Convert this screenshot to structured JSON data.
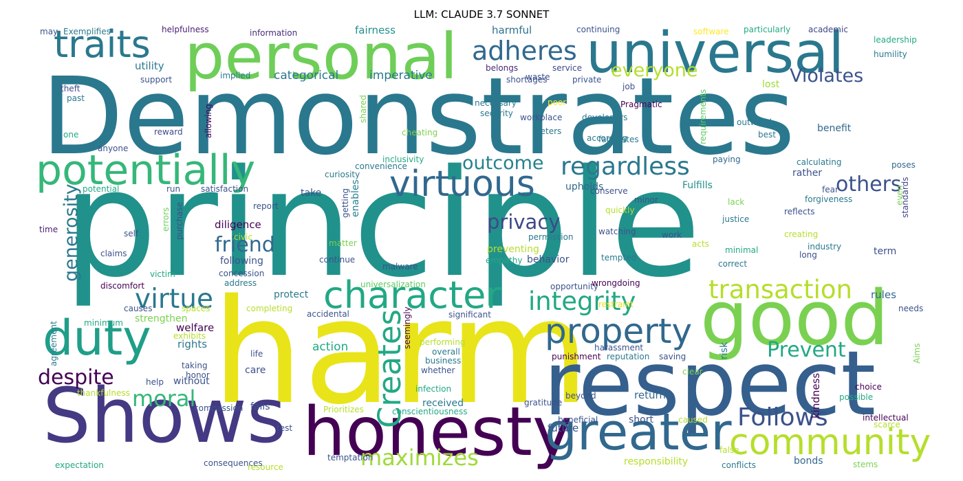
{
  "title": "LLM: CLAUDE 3.7 SONNET",
  "words": [
    {
      "text": "Demonstrates",
      "color": "#2a788e"
    },
    {
      "text": "principle",
      "color": "#21918c"
    },
    {
      "text": "harm",
      "color": "#e8e419"
    },
    {
      "text": "respect",
      "color": "#355f8d"
    },
    {
      "text": "good",
      "color": "#7ad151"
    },
    {
      "text": "Shows",
      "color": "#443983"
    },
    {
      "text": "personal",
      "color": "#6ece58"
    },
    {
      "text": "universal",
      "color": "#2a788e"
    },
    {
      "text": "honesty",
      "color": "#440154"
    },
    {
      "text": "traits",
      "color": "#2a788e"
    },
    {
      "text": "duty",
      "color": "#1f9e89"
    },
    {
      "text": "potentially",
      "color": "#35b779"
    },
    {
      "text": "greater",
      "color": "#31688e"
    },
    {
      "text": "character",
      "color": "#22a884"
    },
    {
      "text": "community",
      "color": "#b5de2b"
    },
    {
      "text": "virtuous",
      "color": "#31688e"
    },
    {
      "text": "regardless",
      "color": "#2a788e"
    },
    {
      "text": "property",
      "color": "#31688e"
    },
    {
      "text": "integrity",
      "color": "#22a884"
    },
    {
      "text": "transaction",
      "color": "#b5de2b"
    },
    {
      "text": "adheres",
      "color": "#31688e"
    },
    {
      "text": "everyone",
      "color": "#b5de2b"
    },
    {
      "text": "virtue",
      "color": "#2a788e"
    },
    {
      "text": "Creates",
      "color": "#22a884"
    },
    {
      "text": "others",
      "color": "#3b528b"
    },
    {
      "text": "privacy",
      "color": "#3e4989"
    },
    {
      "text": "Follows",
      "color": "#3b528b"
    },
    {
      "text": "maximizes",
      "color": "#a0da39"
    },
    {
      "text": "moral",
      "color": "#35b779"
    },
    {
      "text": "despite",
      "color": "#440154"
    },
    {
      "text": "friend",
      "color": "#31688e"
    },
    {
      "text": "Prevent",
      "color": "#22a884"
    },
    {
      "text": "outcome",
      "color": "#26828e"
    },
    {
      "text": "Violates",
      "color": "#3b528b"
    },
    {
      "text": "generosity",
      "color": "#2a788e"
    },
    {
      "text": "categorical",
      "color": "#2a788e"
    },
    {
      "text": "imperative",
      "color": "#2a788e"
    },
    {
      "text": "utility",
      "color": "#2a788e"
    },
    {
      "text": "Exemplifies",
      "color": "#2a788e"
    },
    {
      "text": "may",
      "color": "#3b528b"
    },
    {
      "text": "helpfulness",
      "color": "#482173"
    },
    {
      "text": "information",
      "color": "#472d7b"
    },
    {
      "text": "fairness",
      "color": "#21918c"
    },
    {
      "text": "harmful",
      "color": "#2c728e"
    },
    {
      "text": "continuing",
      "color": "#3b528b"
    },
    {
      "text": "software",
      "color": "#fde725"
    },
    {
      "text": "particularly",
      "color": "#22a884"
    },
    {
      "text": "academic",
      "color": "#414487"
    },
    {
      "text": "leadership",
      "color": "#22a884"
    },
    {
      "text": "humility",
      "color": "#2a788e"
    },
    {
      "text": "implied",
      "color": "#2a788e"
    },
    {
      "text": "belongs",
      "color": "#482878"
    },
    {
      "text": "shortages",
      "color": "#3b528b"
    },
    {
      "text": "service",
      "color": "#3e4989"
    },
    {
      "text": "support",
      "color": "#3b528b"
    },
    {
      "text": "waste",
      "color": "#3b528b"
    },
    {
      "text": "private",
      "color": "#3b528b"
    },
    {
      "text": "lost",
      "color": "#a0da39"
    },
    {
      "text": "theft",
      "color": "#3e4989"
    },
    {
      "text": "past",
      "color": "#2a788e"
    },
    {
      "text": "job",
      "color": "#3b528b"
    },
    {
      "text": "necessary",
      "color": "#2a788e"
    },
    {
      "text": "poor",
      "color": "#fde725"
    },
    {
      "text": "Pragmatic",
      "color": "#440154"
    },
    {
      "text": "security",
      "color": "#2a788e"
    },
    {
      "text": "shared",
      "color": "#7ad151"
    },
    {
      "text": "one",
      "color": "#22a884"
    },
    {
      "text": "reward",
      "color": "#3e4989"
    },
    {
      "text": "workplace",
      "color": "#3b528b"
    },
    {
      "text": "developers",
      "color": "#2a788e"
    },
    {
      "text": "outweigh",
      "color": "#2a788e"
    },
    {
      "text": "allowing",
      "color": "#440154"
    },
    {
      "text": "cheating",
      "color": "#7ad151"
    },
    {
      "text": "deters",
      "color": "#2a788e"
    },
    {
      "text": "according",
      "color": "#2a788e"
    },
    {
      "text": "benefit",
      "color": "#31688e"
    },
    {
      "text": "best",
      "color": "#2a788e"
    },
    {
      "text": "requirements",
      "color": "#5ec962"
    },
    {
      "text": "anyone",
      "color": "#3b528b"
    },
    {
      "text": "facilitates",
      "color": "#2a788e"
    },
    {
      "text": "inclusivity",
      "color": "#22a884"
    },
    {
      "text": "convenience",
      "color": "#2a788e"
    },
    {
      "text": "paying",
      "color": "#31688e"
    },
    {
      "text": "calculating",
      "color": "#2a788e"
    },
    {
      "text": "poses",
      "color": "#31688e"
    },
    {
      "text": "curiosity",
      "color": "#2a788e"
    },
    {
      "text": "rather",
      "color": "#3b528b"
    },
    {
      "text": "potential",
      "color": "#22a884"
    },
    {
      "text": "run",
      "color": "#3b528b"
    },
    {
      "text": "satisfaction",
      "color": "#3b528b"
    },
    {
      "text": "take",
      "color": "#3b528b"
    },
    {
      "text": "upholds",
      "color": "#31688e"
    },
    {
      "text": "conserve",
      "color": "#3b528b"
    },
    {
      "text": "Fulfills",
      "color": "#21918c"
    },
    {
      "text": "minor",
      "color": "#3b528b"
    },
    {
      "text": "fear",
      "color": "#3b528b"
    },
    {
      "text": "forgiveness",
      "color": "#2a788e"
    },
    {
      "text": "lack",
      "color": "#7ad151"
    },
    {
      "text": "quickly",
      "color": "#b5de2b"
    },
    {
      "text": "report",
      "color": "#3b528b"
    },
    {
      "text": "purchase",
      "color": "#3b528b"
    },
    {
      "text": "getting",
      "color": "#3b528b"
    },
    {
      "text": "enables",
      "color": "#26828e"
    },
    {
      "text": "reflects",
      "color": "#3b528b"
    },
    {
      "text": "standards",
      "color": "#414487"
    },
    {
      "text": "even",
      "color": "#7ad151"
    },
    {
      "text": "justice",
      "color": "#2a788e"
    },
    {
      "text": "diligence",
      "color": "#440154"
    },
    {
      "text": "time",
      "color": "#482173"
    },
    {
      "text": "self",
      "color": "#3b528b"
    },
    {
      "text": "errors",
      "color": "#6ece58"
    },
    {
      "text": "watching",
      "color": "#3b528b"
    },
    {
      "text": "creating",
      "color": "#b5de2b"
    },
    {
      "text": "permission",
      "color": "#2a788e"
    },
    {
      "text": "work",
      "color": "#3b528b"
    },
    {
      "text": "civic",
      "color": "#b5de2b"
    },
    {
      "text": "preventing",
      "color": "#b5de2b"
    },
    {
      "text": "acts",
      "color": "#b5de2b"
    },
    {
      "text": "industry",
      "color": "#2a788e"
    },
    {
      "text": "claims",
      "color": "#3b528b"
    },
    {
      "text": "matter",
      "color": "#7ad151"
    },
    {
      "text": "minimal",
      "color": "#22a884"
    },
    {
      "text": "continue",
      "color": "#3b528b"
    },
    {
      "text": "empathy",
      "color": "#22a884"
    },
    {
      "text": "tempted",
      "color": "#2a788e"
    },
    {
      "text": "long",
      "color": "#3b528b"
    },
    {
      "text": "following",
      "color": "#3b528b"
    },
    {
      "text": "behavior",
      "color": "#3b528b"
    },
    {
      "text": "correct",
      "color": "#2a788e"
    },
    {
      "text": "term",
      "color": "#3b528b"
    },
    {
      "text": "malware",
      "color": "#3b528b"
    },
    {
      "text": "victim",
      "color": "#22a884"
    },
    {
      "text": "concession",
      "color": "#3b528b"
    },
    {
      "text": "address",
      "color": "#2a788e"
    },
    {
      "text": "discomfort",
      "color": "#440154"
    },
    {
      "text": "opportunity",
      "color": "#3b528b"
    },
    {
      "text": "wrongdoing",
      "color": "#440154"
    },
    {
      "text": "universalization",
      "color": "#5ec962"
    },
    {
      "text": "protect",
      "color": "#2a788e"
    },
    {
      "text": "causes",
      "color": "#3b528b"
    },
    {
      "text": "spaces",
      "color": "#b5de2b"
    },
    {
      "text": "completing",
      "color": "#b5de2b"
    },
    {
      "text": "accidental",
      "color": "#3b528b"
    },
    {
      "text": "seemingly",
      "color": "#440154"
    },
    {
      "text": "significant",
      "color": "#3b528b"
    },
    {
      "text": "restraint",
      "color": "#e8e419"
    },
    {
      "text": "rules",
      "color": "#31688e"
    },
    {
      "text": "needs",
      "color": "#3b528b"
    },
    {
      "text": "agreement",
      "color": "#2a788e"
    },
    {
      "text": "strengthen",
      "color": "#7ad151"
    },
    {
      "text": "minimum",
      "color": "#22a884"
    },
    {
      "text": "welfare",
      "color": "#440154"
    },
    {
      "text": "exhibits",
      "color": "#b5de2b"
    },
    {
      "text": "action",
      "color": "#22a884"
    },
    {
      "text": "performing",
      "color": "#b5de2b"
    },
    {
      "text": "overall",
      "color": "#2a788e"
    },
    {
      "text": "punishment",
      "color": "#440154"
    },
    {
      "text": "harassment",
      "color": "#3b528b"
    },
    {
      "text": "reputation",
      "color": "#2a788e"
    },
    {
      "text": "saving",
      "color": "#3b528b"
    },
    {
      "text": "rights",
      "color": "#2a788e"
    },
    {
      "text": "risk",
      "color": "#2a788e"
    },
    {
      "text": "kindness",
      "color": "#440154"
    },
    {
      "text": "Aims",
      "color": "#7ad151"
    },
    {
      "text": "taking",
      "color": "#3b528b"
    },
    {
      "text": "life",
      "color": "#3b528b"
    },
    {
      "text": "business",
      "color": "#2a788e"
    },
    {
      "text": "care",
      "color": "#3b528b"
    },
    {
      "text": "honor",
      "color": "#3b528b"
    },
    {
      "text": "whether",
      "color": "#3b528b"
    },
    {
      "text": "clear",
      "color": "#7ad151"
    },
    {
      "text": "without",
      "color": "#3b528b"
    },
    {
      "text": "help",
      "color": "#3b528b"
    },
    {
      "text": "infection",
      "color": "#22a884"
    },
    {
      "text": "thankfulness",
      "color": "#b5de2b"
    },
    {
      "text": "return",
      "color": "#31688e"
    },
    {
      "text": "choice",
      "color": "#440154"
    },
    {
      "text": "possible",
      "color": "#22a884"
    },
    {
      "text": "received",
      "color": "#2a788e"
    },
    {
      "text": "gratitude",
      "color": "#3b528b"
    },
    {
      "text": "beyond",
      "color": "#3b528b"
    },
    {
      "text": "compassion",
      "color": "#3b528b"
    },
    {
      "text": "fails",
      "color": "#3b528b"
    },
    {
      "text": "Prioritizes",
      "color": "#b5de2b"
    },
    {
      "text": "conscientiousness",
      "color": "#22a884"
    },
    {
      "text": "short",
      "color": "#3b528b"
    },
    {
      "text": "beneficial",
      "color": "#3b528b"
    },
    {
      "text": "caused",
      "color": "#b5de2b"
    },
    {
      "text": "intellectual",
      "color": "#440154"
    },
    {
      "text": "test",
      "color": "#3b528b"
    },
    {
      "text": "future",
      "color": "#3b528b"
    },
    {
      "text": "scarce",
      "color": "#b5de2b"
    },
    {
      "text": "temptation",
      "color": "#3b528b"
    },
    {
      "text": "responsibility",
      "color": "#b5de2b"
    },
    {
      "text": "false",
      "color": "#b5de2b"
    },
    {
      "text": "bonds",
      "color": "#31688e"
    },
    {
      "text": "expectation",
      "color": "#22a884"
    },
    {
      "text": "consequences",
      "color": "#3b528b"
    },
    {
      "text": "resource",
      "color": "#b5de2b"
    },
    {
      "text": "conflicts",
      "color": "#2a788e"
    },
    {
      "text": "stems",
      "color": "#7ad151"
    }
  ]
}
